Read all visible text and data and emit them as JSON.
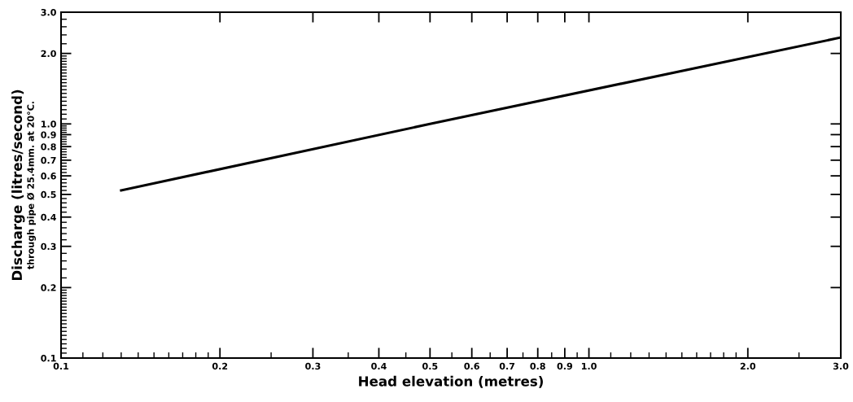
{
  "chart_data": {
    "type": "line",
    "xlabel": "Head elevation (metres)",
    "ylabel": "Discharge (litres/second)\nthrough pipe Ø 25.4mm. at 20°C.",
    "log": "xy",
    "grid": false,
    "legend": false,
    "marker": "none",
    "line_style": "solid",
    "x": [
      0.13,
      0.5,
      3.0
    ],
    "series": [
      {
        "color": "#000000",
        "values": [
          0.52,
          1.0,
          2.34
        ]
      }
    ],
    "xlim": [
      0.1,
      3.0
    ],
    "ylim": [
      0.1,
      3.0
    ],
    "xticks": [
      {
        "value": 0.1,
        "label": "0.1"
      },
      {
        "value": 0.2,
        "label": "0.2"
      },
      {
        "value": 0.3,
        "label": "0.3"
      },
      {
        "value": 0.4,
        "label": "0.4"
      },
      {
        "value": 0.5,
        "label": "0.5"
      },
      {
        "value": 0.6,
        "label": "0.6"
      },
      {
        "value": 0.7,
        "label": "0.7"
      },
      {
        "value": 0.8,
        "label": "0.8"
      },
      {
        "value": 0.9,
        "label": "0.9"
      },
      {
        "value": 1.0,
        "label": "1.0"
      },
      {
        "value": 2.0,
        "label": "2.0"
      },
      {
        "value": 3.0,
        "label": "3.0"
      }
    ],
    "yticks": [
      {
        "value": 0.1,
        "label": "0.1"
      },
      {
        "value": 0.2,
        "label": "0.2"
      },
      {
        "value": 0.3,
        "label": "0.3"
      },
      {
        "value": 0.4,
        "label": "0.4"
      },
      {
        "value": 0.5,
        "label": "0.5"
      },
      {
        "value": 0.6,
        "label": "0.6"
      },
      {
        "value": 0.7,
        "label": "0.7"
      },
      {
        "value": 0.8,
        "label": "0.8"
      },
      {
        "value": 0.9,
        "label": "0.9"
      },
      {
        "value": 1.0,
        "label": "1.0"
      },
      {
        "value": 2.0,
        "label": "2.0"
      },
      {
        "value": 3.0,
        "label": "3.0"
      }
    ]
  }
}
